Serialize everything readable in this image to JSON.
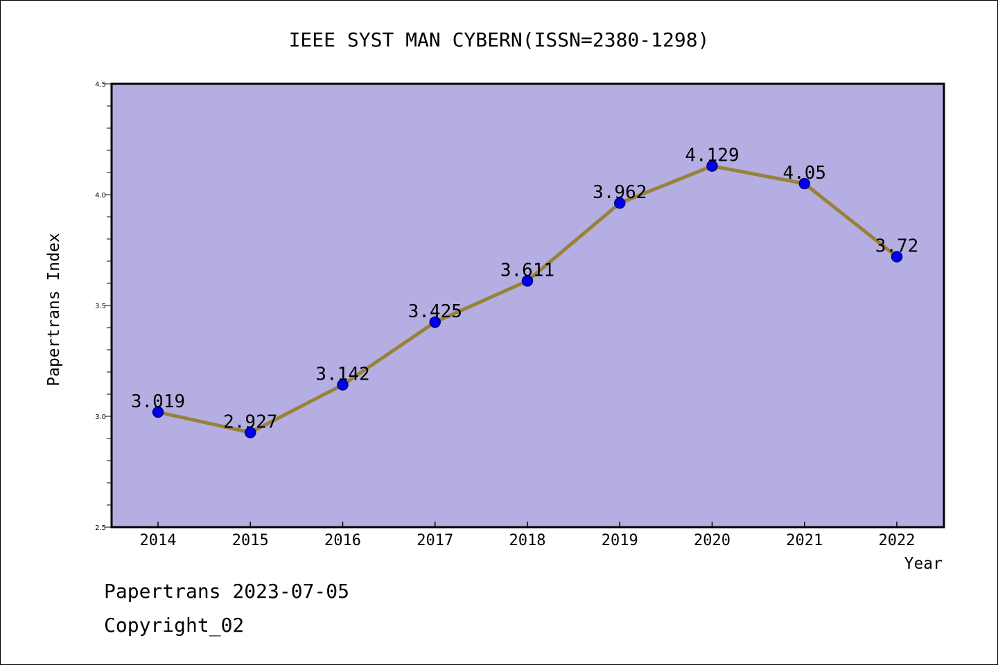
{
  "chart_data": {
    "type": "line",
    "title": "IEEE SYST MAN CYBERN(ISSN=2380-1298)",
    "xlabel": "Year",
    "ylabel": "Papertrans Index",
    "categories": [
      "2014",
      "2015",
      "2016",
      "2017",
      "2018",
      "2019",
      "2020",
      "2021",
      "2022"
    ],
    "series": [
      {
        "values": [
          3.019,
          2.927,
          3.142,
          3.425,
          3.611,
          3.962,
          4.129,
          4.05,
          3.72
        ]
      }
    ],
    "data_labels": [
      "3.019",
      "2.927",
      "3.142",
      "3.425",
      "3.611",
      "3.962",
      "4.129",
      "4.05",
      "3.72"
    ],
    "ylim": [
      2.5,
      4.5
    ],
    "yticks": [
      "2.5",
      "3.0",
      "3.5",
      "4.0",
      "4.5"
    ],
    "y_minor_step": 0.1,
    "grid": false,
    "colors": {
      "plot_background": "#b5aee2",
      "line": "#978237",
      "marker_fill": "#0000ee",
      "marker_stroke": "#000080",
      "axis": "#000000"
    }
  },
  "footer": {
    "source": "Papertrans 2023-07-05",
    "copyright": "Copyright_02"
  }
}
